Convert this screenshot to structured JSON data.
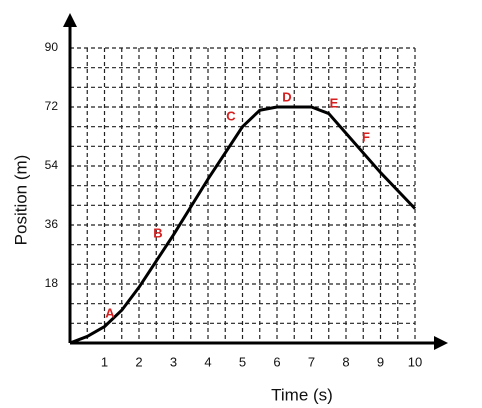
{
  "chart_data": {
    "type": "line",
    "x_label": "Time (s)",
    "y_label": "Position (m)",
    "x": [
      0,
      0.5,
      1,
      1.5,
      2,
      3,
      4,
      5,
      5.5,
      6,
      7,
      7.5,
      8,
      9,
      10
    ],
    "series": [
      {
        "color": "#000000",
        "values": [
          0,
          2,
          5,
          10,
          17,
          33,
          50,
          66,
          71,
          72,
          72,
          70,
          64,
          52,
          41
        ]
      }
    ],
    "xlim": [
      0,
      10
    ],
    "ylim": [
      0,
      90
    ],
    "xticks": [
      1,
      2,
      3,
      4,
      5,
      6,
      7,
      8,
      9,
      10
    ],
    "yticks": [
      18,
      36,
      54,
      72,
      90
    ],
    "grid": true,
    "annotations": [
      "A",
      "B",
      "C",
      "D",
      "E",
      "F"
    ]
  }
}
